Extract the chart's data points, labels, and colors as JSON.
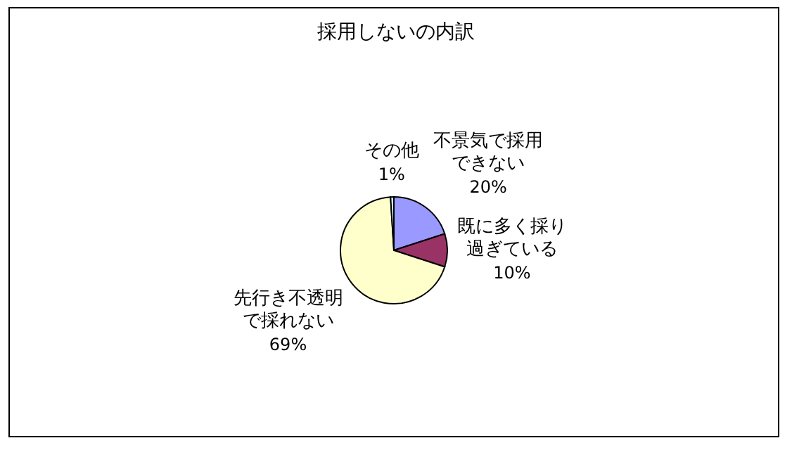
{
  "chart_data": {
    "type": "pie",
    "title": "採用しないの内訳",
    "categories": [
      "不景気で採用できない",
      "既に多く採り過ぎている",
      "先行き不透明で採れない",
      "その他"
    ],
    "values": [
      20,
      10,
      69,
      1
    ],
    "value_labels": [
      "20%",
      "10%",
      "69%",
      "1%"
    ],
    "colors": [
      "#9999ff",
      "#993366",
      "#ffffcc",
      "#ccffff"
    ]
  }
}
